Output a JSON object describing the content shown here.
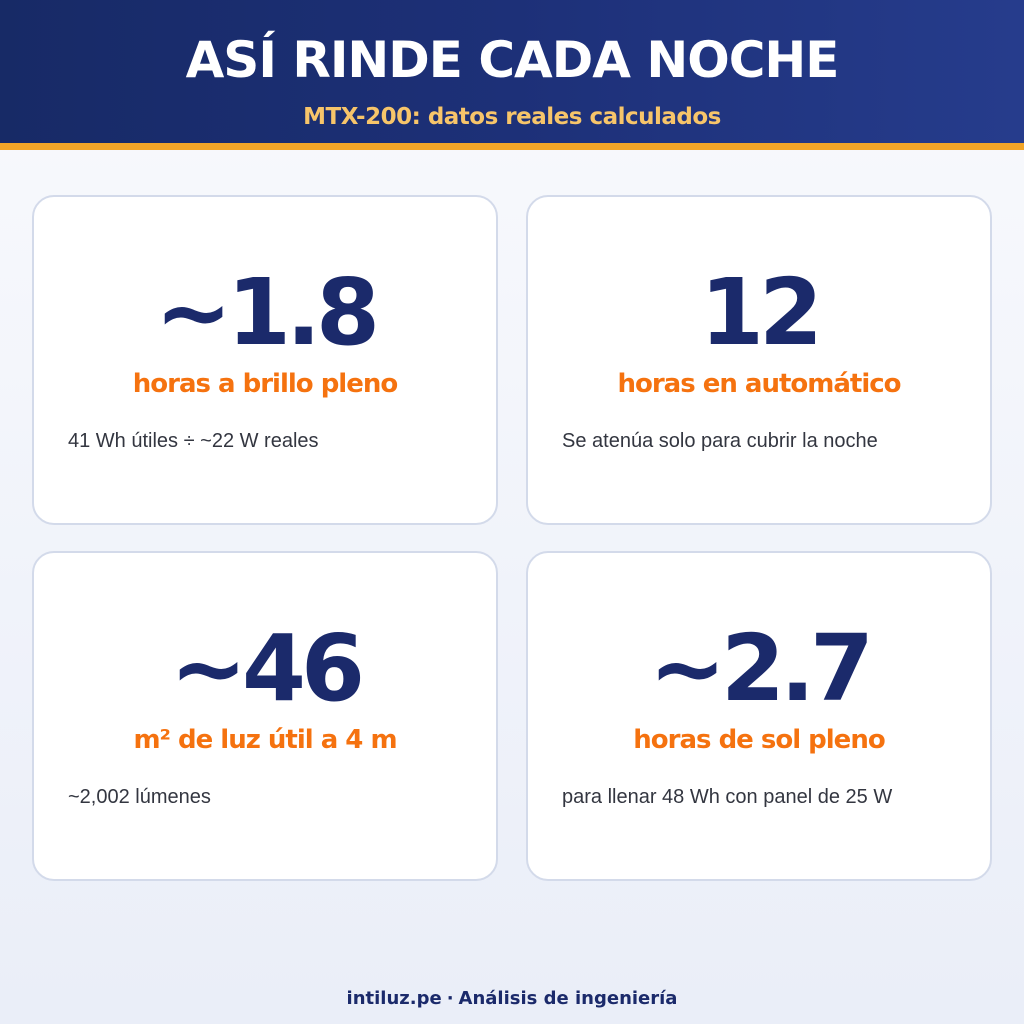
{
  "header": {
    "title": "ASÍ RINDE CADA NOCHE",
    "subtitle": "MTX-200: datos reales calculados"
  },
  "cards": [
    {
      "value": "~1.8",
      "label": "horas a brillo pleno",
      "description": "41 Wh útiles ÷ ~22 W reales"
    },
    {
      "value": "12",
      "label": "horas en automático",
      "description": "Se atenúa solo para cubrir la noche"
    },
    {
      "value": "~46",
      "label": "m² de luz útil a 4 m",
      "description": "~2,002 lúmenes"
    },
    {
      "value": "~2.7",
      "label": "horas de sol pleno",
      "description": "para llenar 48 Wh con panel de 25 W"
    }
  ],
  "footer": {
    "site": "intiluz.pe",
    "separator": "·",
    "tagline": "Análisis de ingeniería"
  },
  "colors": {
    "header_bg": "#1d3078",
    "accent_line": "#f2a528",
    "subtitle": "#f7c56a",
    "value": "#1b2a6b",
    "label": "#f5720f"
  }
}
